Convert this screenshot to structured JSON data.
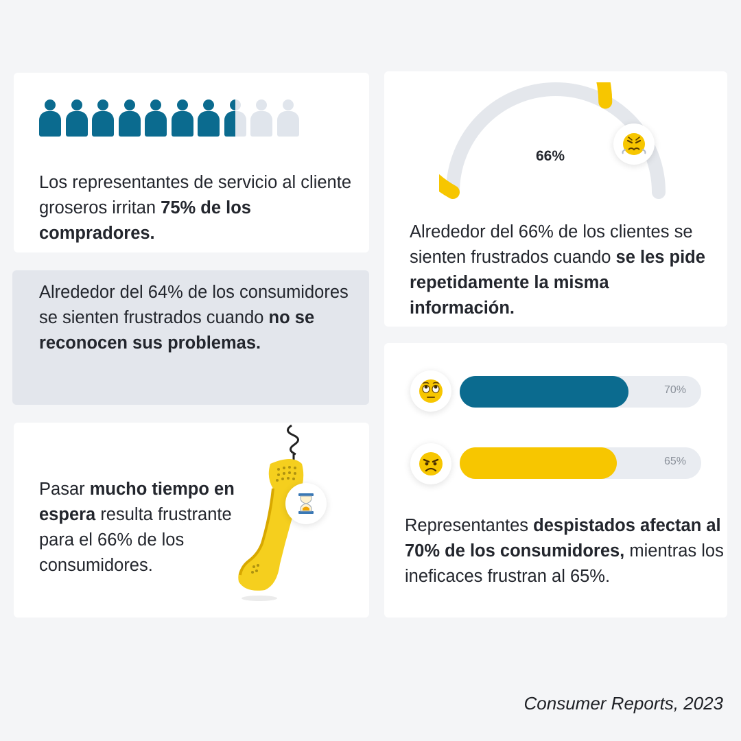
{
  "card1": {
    "people_total": 10,
    "people_filled": 7.5,
    "fill_color": "#0b6b8f",
    "empty_color": "#e0e5ec",
    "text_pre": "Los representantes de servicio al cliente groseros irritan ",
    "text_bold": "75% de los compradores."
  },
  "card2": {
    "gauge_value": 66,
    "gauge_label": "66%",
    "gauge_color": "#f7c600",
    "track_color": "#e4e7ec",
    "icon": "angry-face-icon",
    "text_pre": "Alrededor del 66% de los clientes se sienten frustrados cuando ",
    "text_bold": "se les pide repetidamente la misma información."
  },
  "card3": {
    "text_pre": "Alrededor del 64% de los consumidores se sienten frustrados cuando ",
    "text_bold": "no se reconocen sus problemas."
  },
  "card4": {
    "text_pre": "Pasar ",
    "text_bold": "mucho tiempo en espera",
    "text_post": " resulta frustrante para el 66% de los consumidores.",
    "icon_phone": "phone-handset-icon",
    "icon_timer": "hourglass-icon"
  },
  "card5": {
    "bars": [
      {
        "value": 70,
        "label": "70%",
        "color": "#0b6b8f",
        "icon": "eye-roll-face-icon"
      },
      {
        "value": 65,
        "label": "65%",
        "color": "#f7c600",
        "icon": "angry-face-icon"
      }
    ],
    "text_pre": "Representantes ",
    "text_bold": "despistados afectan al 70% de los consumidores,",
    "text_post": " mientras los ineficaces frustran al 65%."
  },
  "source": "Consumer Reports, 2023"
}
